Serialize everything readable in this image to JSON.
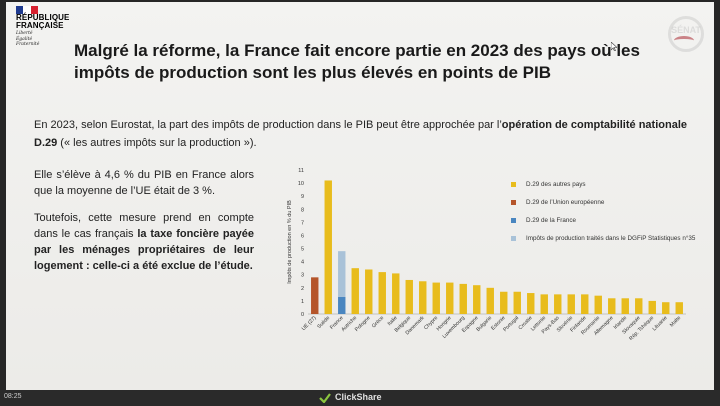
{
  "logo": {
    "line1": "RÉPUBLIQUE",
    "line2": "FRANÇAISE",
    "motto": [
      "Liberté",
      "Égalité",
      "Fraternité"
    ],
    "flag_colors": [
      "#1f3b8f",
      "#ffffff",
      "#d6202f"
    ]
  },
  "watermark": {
    "label": "SÉNAT"
  },
  "title": "Malgré la réforme, la France fait encore partie en 2023 des pays où les impôts de production sont les plus élevés en points de PIB",
  "intro": {
    "part1": "En 2023, selon Eurostat, la part des impôts de production dans le PIB peut être approchée par l’",
    "bold": "opération de comptabilité nationale D.29",
    "part2": " (« les autres impôts sur la production »)."
  },
  "paragraph1": "Elle s’élève à 4,6 % du PIB en France alors que la moyenne de l’UE était de 3 %.",
  "paragraph2": {
    "part1": "Toutefois, cette mesure prend en compte dans le cas français ",
    "bold": "la taxe foncière payée par les ménages propriétaires de leur logement : celle-ci a été exclue de l’étude."
  },
  "chart_data": {
    "type": "bar",
    "ylabel": "Impôts de production en % du PIB",
    "ylim": [
      0,
      11
    ],
    "yticks": [
      0,
      1,
      2,
      3,
      4,
      5,
      6,
      7,
      8,
      9,
      10,
      11
    ],
    "categories": [
      "UE (27)",
      "Suède",
      "France",
      "Autriche",
      "Pologne",
      "Grèce",
      "Italie",
      "Belgique",
      "Danemark",
      "Chypre",
      "Hongrie",
      "Luxembourg",
      "Espagne",
      "Bulgarie",
      "Estonie",
      "Portugal",
      "Croatie",
      "Lettonie",
      "Pays-Bas",
      "Slovénie",
      "Finlande",
      "Roumanie",
      "Allemagne",
      "Irlande",
      "Slovaquie",
      "Rép. Tchèque",
      "Lituanie",
      "Malte"
    ],
    "series": [
      {
        "name": "D.29 des autres pays",
        "color": "#e8bc1c",
        "values": [
          null,
          10.2,
          null,
          3.5,
          3.4,
          3.2,
          3.1,
          2.6,
          2.5,
          2.4,
          2.4,
          2.3,
          2.2,
          2.0,
          1.7,
          1.7,
          1.6,
          1.5,
          1.5,
          1.5,
          1.5,
          1.4,
          1.2,
          1.2,
          1.2,
          1.0,
          0.9,
          0.9
        ]
      },
      {
        "name": "D.29 de l’Union européenne",
        "color": "#b5552a",
        "values": [
          2.8,
          null,
          null,
          null,
          null,
          null,
          null,
          null,
          null,
          null,
          null,
          null,
          null,
          null,
          null,
          null,
          null,
          null,
          null,
          null,
          null,
          null,
          null,
          null,
          null,
          null,
          null,
          null
        ]
      },
      {
        "name": "D.29 de la France",
        "color": "#4a86c0",
        "values": [
          null,
          null,
          1.3,
          null,
          null,
          null,
          null,
          null,
          null,
          null,
          null,
          null,
          null,
          null,
          null,
          null,
          null,
          null,
          null,
          null,
          null,
          null,
          null,
          null,
          null,
          null,
          null,
          null
        ]
      },
      {
        "name": "Impôts de production traités dans le DGFiP Statistiques n°35",
        "color": "#a9c2d8",
        "values": [
          null,
          null,
          3.5,
          null,
          null,
          null,
          null,
          null,
          null,
          null,
          null,
          null,
          null,
          null,
          null,
          null,
          null,
          null,
          null,
          null,
          null,
          null,
          null,
          null,
          null,
          null,
          null,
          null
        ]
      }
    ],
    "stacked": true,
    "legend": "right"
  },
  "taskbar": {
    "clock": "08:25",
    "app_label": "ClickShare"
  }
}
